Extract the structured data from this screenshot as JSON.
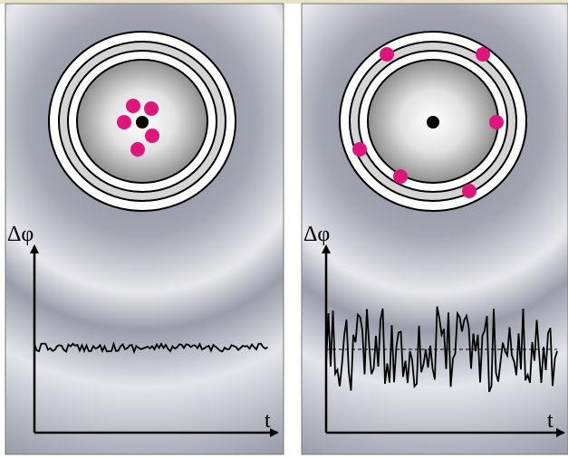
{
  "panels": [
    {
      "y_axis_label": "Δφ",
      "x_axis_label": "t"
    },
    {
      "y_axis_label": "Δφ",
      "x_axis_label": "t"
    }
  ]
}
